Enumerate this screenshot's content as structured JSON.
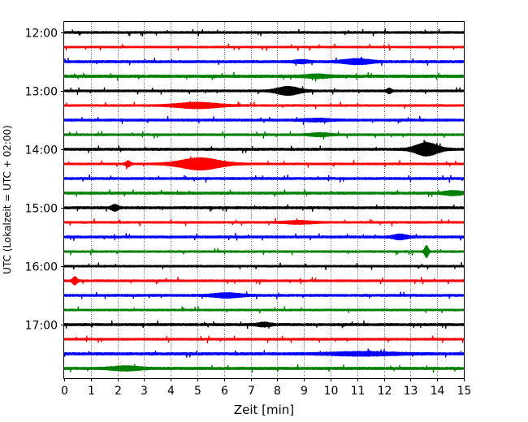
{
  "chart_data": {
    "type": "line",
    "xlabel": "Zeit  [min]",
    "ylabel": "UTC (Lokalzeit = UTC + 02:00)",
    "xlim": [
      0,
      15
    ],
    "x_ticks": [
      "0",
      "1",
      "2",
      "3",
      "4",
      "5",
      "6",
      "7",
      "8",
      "9",
      "10",
      "11",
      "12",
      "13",
      "14",
      "15"
    ],
    "y_tick_labels": [
      "12:00",
      "13:00",
      "14:00",
      "15:00",
      "16:00",
      "17:00"
    ],
    "vertical_grid": true,
    "trace_colors": [
      "#000000",
      "#ff0000",
      "#0000ff",
      "#008000"
    ],
    "traces": [
      {
        "time": "12:00",
        "color": "#000000",
        "base_amp": 1.1,
        "bursts": []
      },
      {
        "time": "12:15",
        "color": "#ff0000",
        "base_amp": 0.9,
        "bursts": []
      },
      {
        "time": "12:30",
        "color": "#0000ff",
        "base_amp": 1.3,
        "bursts": [
          {
            "t": 11.0,
            "width": 0.6,
            "amp": 2.5
          },
          {
            "t": 8.9,
            "width": 0.3,
            "amp": 1.5
          }
        ]
      },
      {
        "time": "12:45",
        "color": "#008000",
        "base_amp": 1.5,
        "bursts": [
          {
            "t": 9.5,
            "width": 0.5,
            "amp": 1.5
          }
        ]
      },
      {
        "time": "13:00",
        "color": "#000000",
        "base_amp": 1.1,
        "bursts": [
          {
            "t": 8.4,
            "width": 0.5,
            "amp": 4.5
          },
          {
            "t": 12.2,
            "width": 0.1,
            "amp": 2.5
          }
        ]
      },
      {
        "time": "13:15",
        "color": "#ff0000",
        "base_amp": 1.0,
        "bursts": [
          {
            "t": 5.0,
            "width": 0.9,
            "amp": 3.0
          }
        ]
      },
      {
        "time": "13:30",
        "color": "#0000ff",
        "base_amp": 1.2,
        "bursts": [
          {
            "t": 9.5,
            "width": 0.6,
            "amp": 1.2
          }
        ]
      },
      {
        "time": "13:45",
        "color": "#008000",
        "base_amp": 1.1,
        "bursts": [
          {
            "t": 9.6,
            "width": 0.4,
            "amp": 1.6
          }
        ]
      },
      {
        "time": "14:00",
        "color": "#000000",
        "base_amp": 1.3,
        "bursts": [
          {
            "t": 13.6,
            "width": 0.5,
            "amp": 7.0
          }
        ]
      },
      {
        "time": "14:15",
        "color": "#ff0000",
        "base_amp": 1.0,
        "bursts": [
          {
            "t": 5.1,
            "width": 0.9,
            "amp": 6.5
          },
          {
            "t": 2.4,
            "width": 0.1,
            "amp": 3.0
          }
        ]
      },
      {
        "time": "14:30",
        "color": "#0000ff",
        "base_amp": 1.2,
        "bursts": []
      },
      {
        "time": "14:45",
        "color": "#008000",
        "base_amp": 1.3,
        "bursts": [
          {
            "t": 14.6,
            "width": 0.4,
            "amp": 2.0
          }
        ]
      },
      {
        "time": "15:00",
        "color": "#000000",
        "base_amp": 1.3,
        "bursts": [
          {
            "t": 1.9,
            "width": 0.15,
            "amp": 3.0
          }
        ]
      },
      {
        "time": "15:15",
        "color": "#ff0000",
        "base_amp": 1.0,
        "bursts": [
          {
            "t": 8.8,
            "width": 0.6,
            "amp": 1.4
          }
        ]
      },
      {
        "time": "15:30",
        "color": "#0000ff",
        "base_amp": 1.2,
        "bursts": [
          {
            "t": 12.6,
            "width": 0.3,
            "amp": 2.5
          }
        ]
      },
      {
        "time": "15:45",
        "color": "#008000",
        "base_amp": 1.0,
        "bursts": [
          {
            "t": 13.6,
            "width": 0.08,
            "amp": 6.5
          }
        ]
      },
      {
        "time": "16:00",
        "color": "#000000",
        "base_amp": 1.0,
        "bursts": []
      },
      {
        "time": "16:15",
        "color": "#ff0000",
        "base_amp": 1.1,
        "bursts": [
          {
            "t": 0.4,
            "width": 0.1,
            "amp": 4.0
          }
        ]
      },
      {
        "time": "16:30",
        "color": "#0000ff",
        "base_amp": 1.2,
        "bursts": [
          {
            "t": 6.1,
            "width": 0.6,
            "amp": 2.2
          }
        ]
      },
      {
        "time": "16:45",
        "color": "#008000",
        "base_amp": 1.0,
        "bursts": []
      },
      {
        "time": "17:00",
        "color": "#000000",
        "base_amp": 1.3,
        "bursts": [
          {
            "t": 7.5,
            "width": 0.3,
            "amp": 1.8
          }
        ]
      },
      {
        "time": "17:15",
        "color": "#ff0000",
        "base_amp": 1.1,
        "bursts": []
      },
      {
        "time": "17:30",
        "color": "#0000ff",
        "base_amp": 1.4,
        "bursts": [
          {
            "t": 11.2,
            "width": 1.4,
            "amp": 1.6
          }
        ]
      },
      {
        "time": "17:45",
        "color": "#008000",
        "base_amp": 1.4,
        "bursts": [
          {
            "t": 2.3,
            "width": 0.6,
            "amp": 2.0
          }
        ]
      }
    ]
  }
}
